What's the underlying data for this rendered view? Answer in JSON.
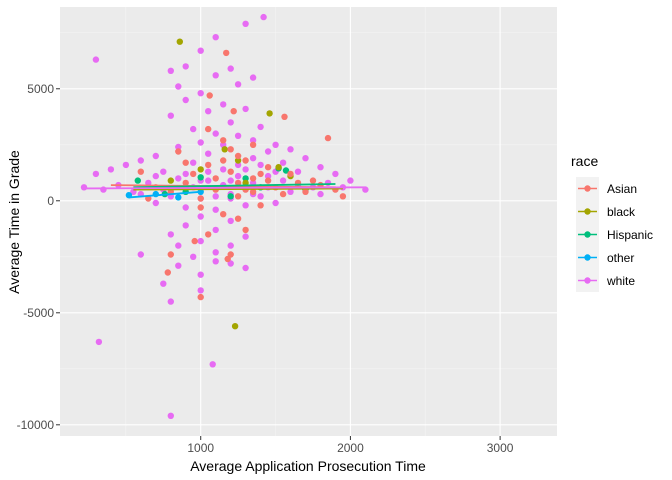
{
  "chart_data": {
    "type": "scatter",
    "title": "",
    "xlabel": "Average Application Prosecution Time",
    "ylabel": "Average Time in Grade",
    "xlim": [
      60,
      3380
    ],
    "ylim": [
      -10500,
      8650
    ],
    "x_ticks": [
      1000,
      2000,
      3000
    ],
    "y_ticks": [
      -10000,
      -5000,
      0,
      5000
    ],
    "x_tick_labels": [
      "1000",
      "2000",
      "3000"
    ],
    "y_tick_labels": [
      "-10000",
      "-5000",
      "0",
      "5000"
    ],
    "grid": true,
    "legend": {
      "title": "race",
      "position": "right",
      "entries": [
        "Asian",
        "black",
        "Hispanic",
        "other",
        "white"
      ]
    },
    "colors": {
      "Asian": "#F8766D",
      "black": "#A3A500",
      "Hispanic": "#00BF7D",
      "other": "#00B0F6",
      "white": "#E76BF3"
    },
    "series": [
      {
        "name": "Asian",
        "trend": [
          [
            400,
            700
          ],
          [
            1900,
            600
          ]
        ],
        "points": [
          [
            1170,
            6600
          ],
          [
            1060,
            4700
          ],
          [
            1220,
            4000
          ],
          [
            1560,
            3750
          ],
          [
            1850,
            2800
          ],
          [
            1200,
            2300
          ],
          [
            850,
            2200
          ],
          [
            1050,
            3200
          ],
          [
            1300,
            1800
          ],
          [
            1450,
            1500
          ],
          [
            950,
            1200
          ],
          [
            1350,
            1000
          ],
          [
            1750,
            900
          ],
          [
            1900,
            500
          ],
          [
            1100,
            500
          ],
          [
            1600,
            1200
          ],
          [
            1250,
            200
          ],
          [
            1400,
            -200
          ],
          [
            1000,
            -300
          ],
          [
            1150,
            -600
          ],
          [
            1250,
            -800
          ],
          [
            1300,
            -1300
          ],
          [
            1200,
            -2400
          ],
          [
            1180,
            -2600
          ],
          [
            960,
            -1800
          ],
          [
            800,
            -2400
          ],
          [
            780,
            -3200
          ],
          [
            1050,
            -1500
          ],
          [
            1000,
            -4300
          ],
          [
            1050,
            1600
          ],
          [
            1150,
            2700
          ],
          [
            1250,
            800
          ],
          [
            700,
            600
          ],
          [
            600,
            1300
          ],
          [
            900,
            1700
          ],
          [
            1500,
            600
          ],
          [
            1700,
            400
          ],
          [
            1950,
            200
          ],
          [
            1800,
            700
          ],
          [
            1350,
            400
          ],
          [
            1450,
            900
          ],
          [
            1550,
            300
          ],
          [
            1650,
            800
          ],
          [
            1100,
            1000
          ],
          [
            1200,
            1300
          ],
          [
            1300,
            500
          ],
          [
            1400,
            1200
          ],
          [
            900,
            800
          ],
          [
            800,
            400
          ],
          [
            650,
            100
          ],
          [
            1000,
            100
          ],
          [
            1150,
            1800
          ],
          [
            1250,
            2000
          ],
          [
            1350,
            2500
          ]
        ]
      },
      {
        "name": "black",
        "trend": [
          [
            550,
            500
          ],
          [
            1950,
            550
          ]
        ],
        "points": [
          [
            860,
            7100
          ],
          [
            1460,
            3900
          ],
          [
            1230,
            -5600
          ],
          [
            1160,
            2300
          ],
          [
            1520,
            1500
          ],
          [
            1000,
            1400
          ],
          [
            800,
            900
          ],
          [
            1300,
            800
          ],
          [
            1600,
            1100
          ],
          [
            900,
            600
          ],
          [
            1250,
            1800
          ]
        ]
      },
      {
        "name": "Hispanic",
        "trend": [
          [
            550,
            600
          ],
          [
            1900,
            750
          ]
        ],
        "points": [
          [
            1520,
            1450
          ],
          [
            1570,
            1350
          ],
          [
            1000,
            1050
          ],
          [
            760,
            300
          ],
          [
            580,
            900
          ],
          [
            1400,
            600
          ],
          [
            1200,
            200
          ],
          [
            1700,
            500
          ],
          [
            900,
            400
          ],
          [
            1300,
            1000
          ]
        ]
      },
      {
        "name": "other",
        "trend": [
          [
            520,
            150
          ],
          [
            1000,
            400
          ]
        ],
        "points": [
          [
            520,
            250
          ],
          [
            700,
            300
          ],
          [
            850,
            150
          ],
          [
            1000,
            400
          ]
        ]
      },
      {
        "name": "white",
        "trend": [
          [
            220,
            550
          ],
          [
            2100,
            600
          ]
        ],
        "points": [
          [
            1420,
            8200
          ],
          [
            1300,
            7900
          ],
          [
            1100,
            7300
          ],
          [
            1000,
            6700
          ],
          [
            300,
            6300
          ],
          [
            900,
            6000
          ],
          [
            1200,
            5900
          ],
          [
            800,
            5800
          ],
          [
            1100,
            5600
          ],
          [
            1350,
            5500
          ],
          [
            850,
            5100
          ],
          [
            1250,
            5200
          ],
          [
            1000,
            4800
          ],
          [
            900,
            4500
          ],
          [
            1150,
            4300
          ],
          [
            1300,
            4100
          ],
          [
            1050,
            4000
          ],
          [
            800,
            3800
          ],
          [
            1200,
            3500
          ],
          [
            1400,
            3300
          ],
          [
            950,
            3200
          ],
          [
            1100,
            3000
          ],
          [
            1250,
            2900
          ],
          [
            1350,
            2700
          ],
          [
            1500,
            2500
          ],
          [
            1600,
            2300
          ],
          [
            1000,
            2600
          ],
          [
            850,
            2400
          ],
          [
            700,
            2000
          ],
          [
            600,
            1800
          ],
          [
            500,
            1600
          ],
          [
            400,
            1400
          ],
          [
            300,
            1200
          ],
          [
            1700,
            1900
          ],
          [
            1800,
            1500
          ],
          [
            1900,
            1200
          ],
          [
            2000,
            900
          ],
          [
            2100,
            500
          ],
          [
            1050,
            2100
          ],
          [
            1150,
            2500
          ],
          [
            1450,
            2200
          ],
          [
            1550,
            1700
          ],
          [
            1650,
            1300
          ],
          [
            750,
            1300
          ],
          [
            950,
            1700
          ],
          [
            1250,
            1600
          ],
          [
            1350,
            1900
          ],
          [
            1450,
            1100
          ],
          [
            220,
            600
          ],
          [
            350,
            500
          ],
          [
            450,
            700
          ],
          [
            550,
            400
          ],
          [
            650,
            800
          ],
          [
            750,
            500
          ],
          [
            850,
            1000
          ],
          [
            950,
            600
          ],
          [
            1050,
            900
          ],
          [
            1150,
            700
          ],
          [
            1250,
            1100
          ],
          [
            1350,
            800
          ],
          [
            1450,
            600
          ],
          [
            1550,
            900
          ],
          [
            1650,
            700
          ],
          [
            1750,
            600
          ],
          [
            1850,
            800
          ],
          [
            1950,
            600
          ],
          [
            600,
            300
          ],
          [
            800,
            200
          ],
          [
            1000,
            100
          ],
          [
            1200,
            300
          ],
          [
            1400,
            200
          ],
          [
            1600,
            400
          ],
          [
            1800,
            300
          ],
          [
            700,
            -100
          ],
          [
            900,
            -300
          ],
          [
            1100,
            -400
          ],
          [
            1300,
            -200
          ],
          [
            1500,
            -100
          ],
          [
            1000,
            -700
          ],
          [
            1200,
            -900
          ],
          [
            900,
            -1100
          ],
          [
            1100,
            -1300
          ],
          [
            1300,
            -1600
          ],
          [
            800,
            -1500
          ],
          [
            1000,
            -1800
          ],
          [
            1200,
            -2000
          ],
          [
            850,
            -2000
          ],
          [
            1100,
            -2300
          ],
          [
            950,
            -2500
          ],
          [
            600,
            -2400
          ],
          [
            1100,
            -2700
          ],
          [
            1000,
            -3300
          ],
          [
            850,
            -2900
          ],
          [
            1200,
            -2800
          ],
          [
            1300,
            -3000
          ],
          [
            750,
            -3700
          ],
          [
            800,
            -4500
          ],
          [
            1000,
            -4000
          ],
          [
            320,
            -6300
          ],
          [
            1080,
            -7300
          ],
          [
            800,
            -9600
          ],
          [
            1150,
            1400
          ],
          [
            1050,
            1300
          ],
          [
            900,
            1200
          ],
          [
            1200,
            900
          ],
          [
            1300,
            1400
          ],
          [
            1400,
            1600
          ],
          [
            1500,
            1300
          ],
          [
            1000,
            900
          ],
          [
            700,
            1100
          ],
          [
            1100,
            200
          ],
          [
            1200,
            100
          ],
          [
            1350,
            300
          ]
        ]
      }
    ]
  }
}
